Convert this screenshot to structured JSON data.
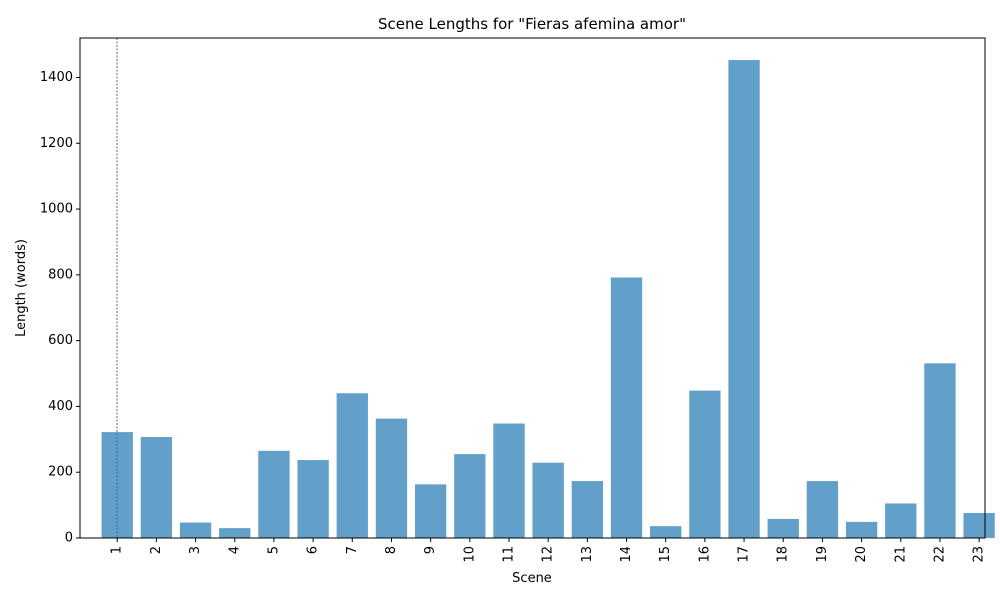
{
  "chart_data": {
    "type": "bar",
    "title": "Scene Lengths for \"Fieras afemina amor\"",
    "xlabel": "Scene",
    "ylabel": "Length (words)",
    "categories": [
      "1",
      "2",
      "3",
      "4",
      "5",
      "6",
      "7",
      "8",
      "9",
      "10",
      "11",
      "12",
      "13",
      "14",
      "15",
      "16",
      "17",
      "18",
      "19",
      "20",
      "21",
      "22",
      "23"
    ],
    "values": [
      322,
      307,
      47,
      30,
      265,
      237,
      440,
      363,
      163,
      255,
      348,
      229,
      173,
      792,
      36,
      448,
      1453,
      58,
      173,
      49,
      105,
      531,
      76
    ],
    "ylim": [
      0,
      1520
    ],
    "yticks": [
      0,
      200,
      400,
      600,
      800,
      1000,
      1200,
      1400
    ],
    "grid": false,
    "bar_color": "#1f77b4",
    "bar_alpha": 0.7,
    "reference_line": {
      "style": "dashed",
      "color": "#000000"
    }
  }
}
